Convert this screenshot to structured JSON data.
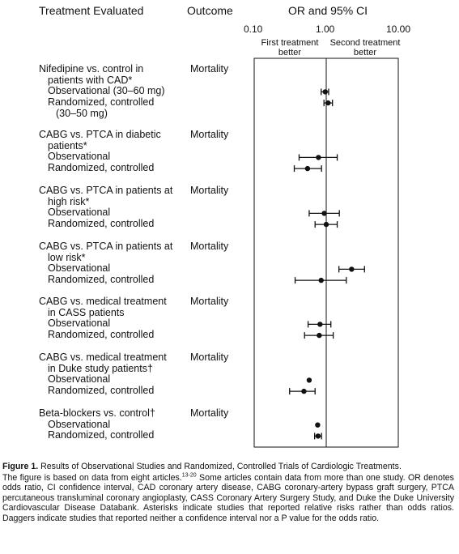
{
  "headers": {
    "treatment": "Treatment Evaluated",
    "outcome": "Outcome",
    "ci": "OR and 95% CI"
  },
  "ticks": [
    "0.10",
    "1.00",
    "10.00"
  ],
  "better_left": [
    "First treatment",
    "better"
  ],
  "better_right": [
    "Second treatment",
    "better"
  ],
  "chart_data": {
    "type": "forest",
    "title": "OR and 95% CI",
    "xscale": "log",
    "xlim": [
      0.1,
      10
    ],
    "reference_line": 1.0,
    "groups": [
      {
        "title": [
          "Nifedipine vs. control in",
          "patients with CAD*"
        ],
        "outcome": "Mortality",
        "rows": [
          {
            "label": [
              "Observational (30–60 mg)"
            ],
            "or": 0.97,
            "lo": 0.85,
            "hi": 1.08
          },
          {
            "label": [
              "Randomized, controlled",
              "(30–50 mg)"
            ],
            "or": 1.06,
            "lo": 0.93,
            "hi": 1.22
          }
        ]
      },
      {
        "title": [
          "CABG vs. PTCA in diabetic",
          "patients*"
        ],
        "outcome": "Mortality",
        "rows": [
          {
            "label": [
              "Observational"
            ],
            "or": 0.78,
            "lo": 0.42,
            "hi": 1.42
          },
          {
            "label": [
              "Randomized, controlled"
            ],
            "or": 0.55,
            "lo": 0.36,
            "hi": 0.86
          }
        ]
      },
      {
        "title": [
          "CABG vs. PTCA in patients at",
          "high risk*"
        ],
        "outcome": "Mortality",
        "rows": [
          {
            "label": [
              "Observational"
            ],
            "or": 0.94,
            "lo": 0.58,
            "hi": 1.52
          },
          {
            "label": [
              "Randomized, controlled"
            ],
            "or": 1.0,
            "lo": 0.7,
            "hi": 1.42
          }
        ]
      },
      {
        "title": [
          "CABG vs. PTCA in patients at",
          "low risk*"
        ],
        "outcome": "Mortality",
        "rows": [
          {
            "label": [
              "Observational"
            ],
            "or": 2.25,
            "lo": 1.5,
            "hi": 3.4
          },
          {
            "label": [
              "Randomized, controlled"
            ],
            "or": 0.85,
            "lo": 0.37,
            "hi": 1.9
          }
        ]
      },
      {
        "title": [
          "CABG vs. medical treatment",
          "in CASS patients"
        ],
        "outcome": "Mortality",
        "rows": [
          {
            "label": [
              "Observational"
            ],
            "or": 0.82,
            "lo": 0.56,
            "hi": 1.16
          },
          {
            "label": [
              "Randomized, controlled"
            ],
            "or": 0.8,
            "lo": 0.5,
            "hi": 1.25
          }
        ]
      },
      {
        "title": [
          "CABG vs. medical treatment",
          "in Duke study patients†"
        ],
        "outcome": "Mortality",
        "rows": [
          {
            "label": [
              "Observational"
            ],
            "or": 0.58,
            "lo": null,
            "hi": null
          },
          {
            "label": [
              "Randomized, controlled"
            ],
            "or": 0.49,
            "lo": 0.31,
            "hi": 0.7
          }
        ]
      },
      {
        "title": [
          "Beta-blockers vs. control†"
        ],
        "outcome": "Mortality",
        "rows": [
          {
            "label": [
              "Observational"
            ],
            "or": 0.76,
            "lo": null,
            "hi": null
          },
          {
            "label": [
              "Randomized, controlled"
            ],
            "or": 0.77,
            "lo": 0.69,
            "hi": 0.86
          }
        ]
      }
    ]
  },
  "caption": {
    "fig_label": "Figure 1.",
    "fig_title": " Results of Observational Studies and Randomized, Controlled Trials of Cardiologic Treatments.",
    "body_start": "The figure is based on data from eight articles.",
    "refs": "13-20",
    "body_rest": " Some articles contain data from more than one study. OR denotes odds ratio, CI confidence interval, CAD coronary artery disease, CABG coronary-artery bypass graft surgery, PTCA percutaneous transluminal coronary angioplasty, CASS Coronary Artery Surgery Study, and Duke the Duke University Cardiovascular Disease Databank. Asterisks indicate studies that reported relative risks rather than odds ratios. Daggers indicate studies that reported neither a confidence interval nor a P value for the odds ratio."
  }
}
